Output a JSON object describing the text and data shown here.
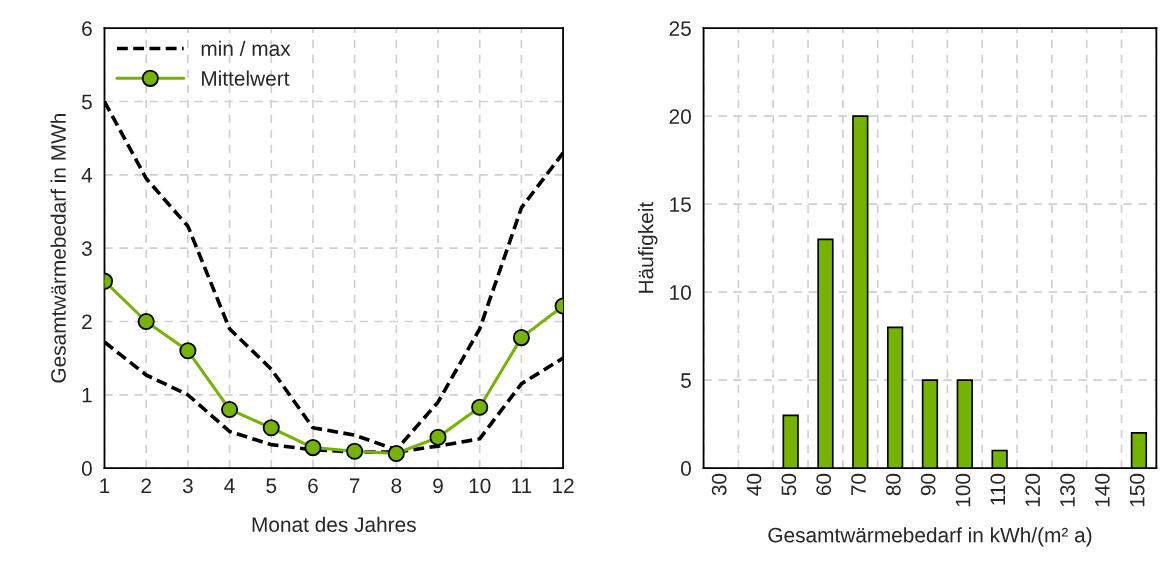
{
  "chart_data": [
    {
      "type": "line",
      "xlabel": "Monat des Jahres",
      "ylabel": "Gesamtwärmebedarf in MWh",
      "x": [
        1,
        2,
        3,
        4,
        5,
        6,
        7,
        8,
        9,
        10,
        11,
        12
      ],
      "xlim": [
        1,
        12
      ],
      "xticks": [
        1,
        2,
        3,
        4,
        5,
        6,
        7,
        8,
        9,
        10,
        11,
        12
      ],
      "ylim": [
        0,
        6
      ],
      "yticks": [
        0,
        1,
        2,
        3,
        4,
        5,
        6
      ],
      "grid": true,
      "legend": "top left",
      "series": [
        {
          "name": "min / max",
          "color": "#000000",
          "line_style": "dashed",
          "marker": "none",
          "values": [
            5.0,
            3.95,
            3.3,
            1.9,
            1.35,
            0.55,
            0.45,
            0.25,
            0.9,
            1.9,
            3.55,
            4.3
          ]
        },
        {
          "color": "#000000",
          "line_style": "dashed",
          "marker": "none",
          "values": [
            1.72,
            1.27,
            1.0,
            0.5,
            0.32,
            0.25,
            0.22,
            0.22,
            0.3,
            0.4,
            1.15,
            1.5
          ]
        },
        {
          "name": "Mittelwert",
          "color": "#76b300",
          "line_style": "solid",
          "marker": "circle",
          "values": [
            2.55,
            2.0,
            1.6,
            0.8,
            0.55,
            0.28,
            0.23,
            0.2,
            0.42,
            0.83,
            1.78,
            2.21
          ]
        }
      ]
    },
    {
      "type": "bar",
      "xlabel": "Gesamtwärmebedarf in kWh/(m² a)",
      "ylabel": "Häufigkeit",
      "categories": [
        "30",
        "40",
        "50",
        "60",
        "70",
        "80",
        "90",
        "100",
        "110",
        "120",
        "130",
        "140",
        "150"
      ],
      "values": [
        0,
        0,
        3,
        13,
        20,
        8,
        5,
        5,
        1,
        0,
        0,
        0,
        2
      ],
      "color": "#76b300",
      "ylim": [
        0,
        25
      ],
      "yticks": [
        0,
        5,
        10,
        15,
        20,
        25
      ],
      "grid": true
    }
  ]
}
